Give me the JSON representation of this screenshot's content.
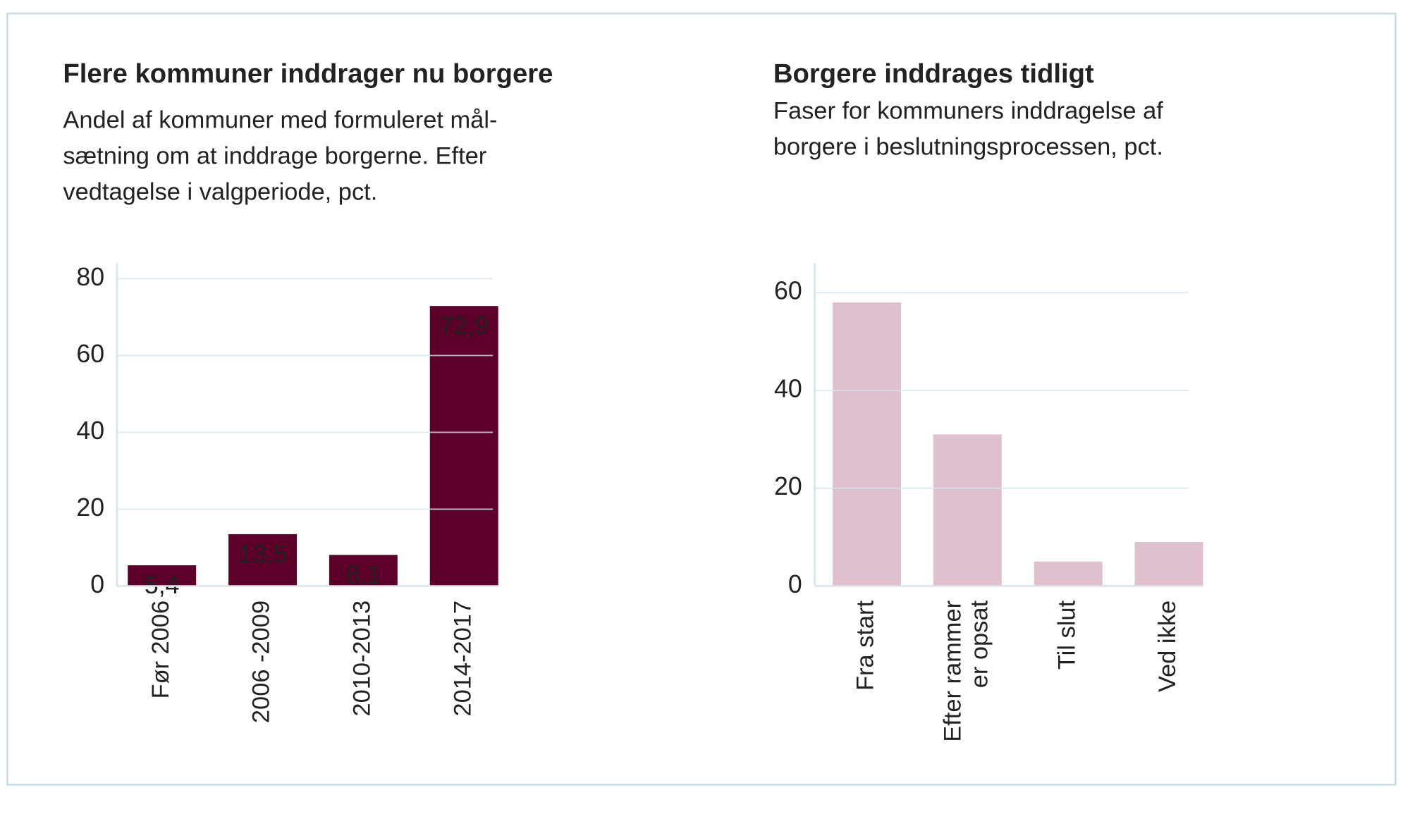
{
  "chart_data": [
    {
      "type": "bar",
      "title": "Flere kommuner inddrager nu borgere",
      "subtitle": [
        "Andel af kommuner med formuleret mål-",
        "sætning om at inddrage borgerne. Efter",
        "vedtagelse i valgperiode, pct."
      ],
      "categories": [
        "Før 2006",
        "2006 -2009",
        "2010-2013",
        "2014-2017"
      ],
      "values": [
        5.4,
        13.5,
        8.1,
        72.9
      ],
      "value_labels": [
        "5,4",
        "13,5",
        "8,1",
        "72,9"
      ],
      "color": "#5c0029",
      "ylim": [
        0,
        84
      ],
      "yticks": [
        0,
        20,
        40,
        60,
        80
      ],
      "grid": true
    },
    {
      "type": "bar",
      "title": "Borgere inddrages tidligt",
      "subtitle": [
        "Faser for kommuners inddragelse af",
        "borgere i beslutningsprocessen, pct."
      ],
      "categories": [
        "Fra start",
        "Efter rammer\ner opsat",
        "Til slut",
        "Ved ikke"
      ],
      "values": [
        58,
        31,
        5,
        9
      ],
      "color": "#dfc0cf",
      "ylim": [
        0,
        66
      ],
      "yticks": [
        0,
        20,
        40,
        60
      ],
      "grid": true
    }
  ]
}
